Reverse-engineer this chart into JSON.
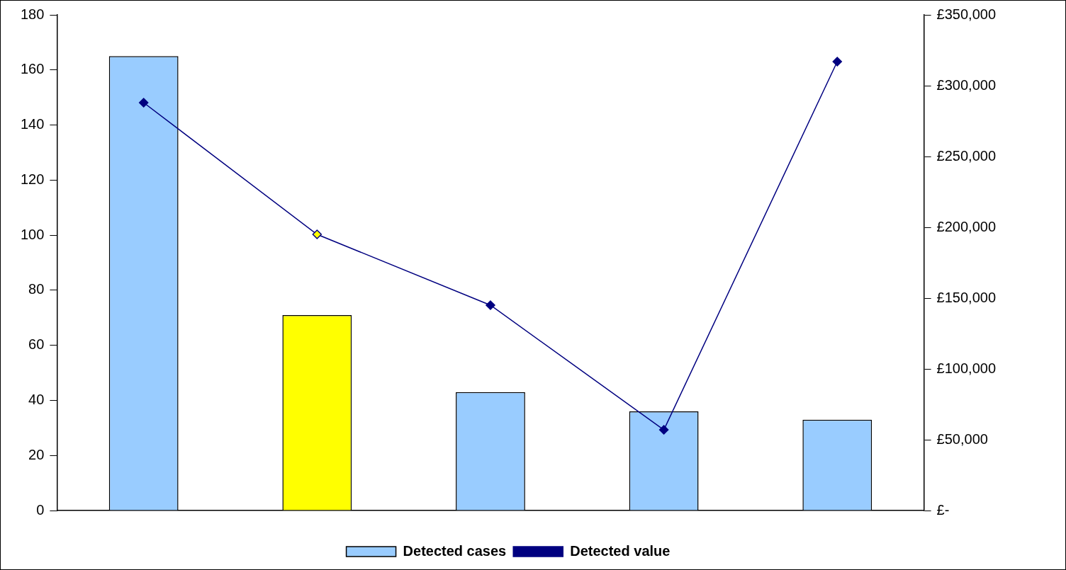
{
  "chart_data": {
    "type": "bar",
    "categories": [
      null,
      null,
      null,
      null,
      null
    ],
    "series": [
      {
        "name": "Detected cases",
        "color": "#99ccff",
        "colors": [
          "#99ccff",
          "#ffff00",
          "#99ccff",
          "#99ccff",
          "#99ccff"
        ],
        "values": [
          165,
          71,
          43,
          36,
          33
        ]
      },
      {
        "name": "Detected value",
        "type": "line",
        "axis": "y2",
        "color": "#000080",
        "colors": [
          "#000080",
          "#ffff00",
          "#000080",
          "#000080",
          "#000080"
        ],
        "values": [
          288000,
          195000,
          145000,
          57000,
          317000
        ]
      }
    ],
    "ylim": [
      0,
      180
    ],
    "yticks": [
      0,
      20,
      40,
      60,
      80,
      100,
      120,
      140,
      160,
      180
    ],
    "y2lim": [
      0,
      350000
    ],
    "y2ticks": [
      {
        "value": 0,
        "label": "£-"
      },
      {
        "value": 50000,
        "label": "£50,000"
      },
      {
        "value": 100000,
        "label": "£100,000"
      },
      {
        "value": 150000,
        "label": "£150,000"
      },
      {
        "value": 200000,
        "label": "£200,000"
      },
      {
        "value": 250000,
        "label": "£250,000"
      },
      {
        "value": 300000,
        "label": "£300,000"
      },
      {
        "value": 350000,
        "label": "£350,000"
      }
    ],
    "marker": "diamond",
    "legend": "bottom"
  }
}
